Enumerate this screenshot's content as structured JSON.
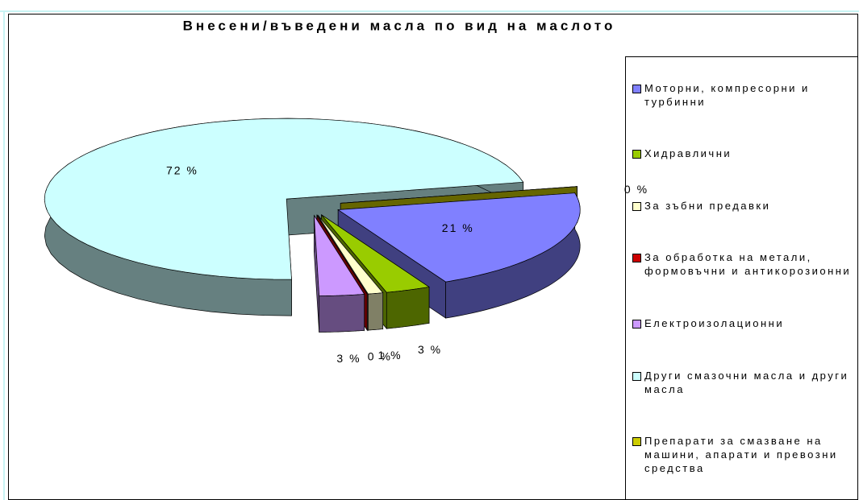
{
  "chart_data": {
    "type": "pie",
    "title": "Внесени/въведени масла по вид на маслото",
    "categories": [
      "Моторни, компресорни и турбинни",
      "Хидравлични",
      "За зъбни предавки",
      "За обработка на метали, формовъчни и антикорозионни",
      "Електроизолационни",
      "Други смазочни масла и други масла",
      "Препарати за смазване на машини, апарати и превозни средства"
    ],
    "values": [
      21,
      3,
      1,
      0,
      3,
      72,
      0
    ],
    "value_labels": [
      "21 %",
      "3 %",
      "1 %",
      "0 %",
      "3 %",
      "72 %",
      "0 %"
    ],
    "colors": [
      "#8080ff",
      "#99cc00",
      "#ffffcc",
      "#cc0000",
      "#cc99ff",
      "#ccffff",
      "#cccc00"
    ],
    "legend": "right"
  }
}
